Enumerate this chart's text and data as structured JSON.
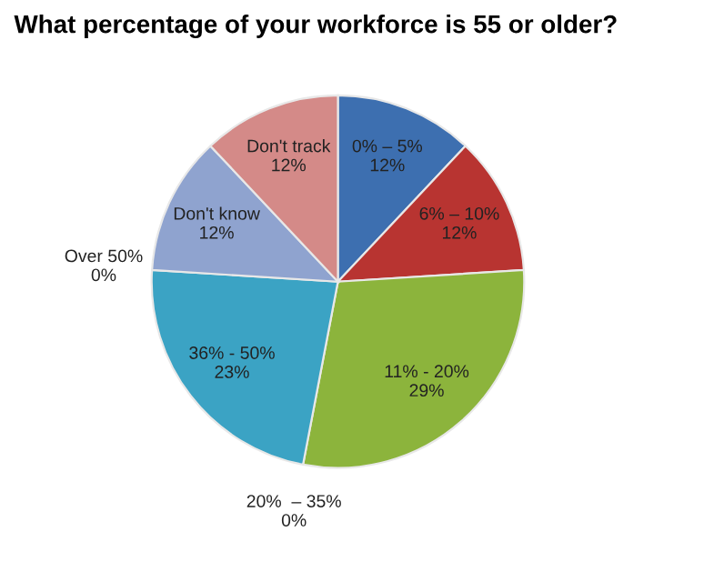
{
  "chart_data": {
    "type": "pie",
    "title": "What percentage of your workforce is 55 or older?",
    "categories": [
      "0% – 5%",
      "6% – 10%",
      "11% - 20%",
      "20%  – 35%",
      "36% - 50%",
      "Over 50%",
      "Don't know",
      "Don't track"
    ],
    "values": [
      12,
      12,
      29,
      0,
      23,
      0,
      12,
      12
    ],
    "value_labels": [
      "12%",
      "12%",
      "29%",
      "0%",
      "23%",
      "0%",
      "12%",
      "12%"
    ],
    "colors": [
      "#3d6fb0",
      "#b83431",
      "#8cb43c",
      "#7f60a8",
      "#3ba3c4",
      "#f79646",
      "#8fa3cf",
      "#d48a88"
    ],
    "legend": false
  }
}
